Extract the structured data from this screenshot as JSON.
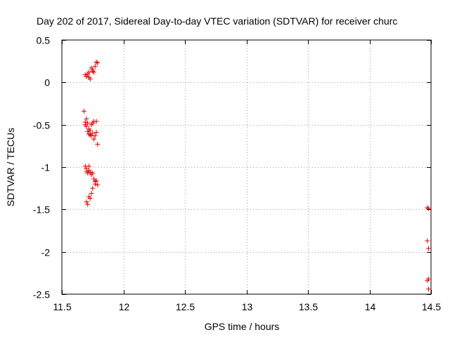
{
  "chart_data": {
    "type": "scatter",
    "title": "Day 202 of 2017, Sidereal Day-to-day VTEC variation (SDTVAR) for receiver churc",
    "xlabel": "GPS time / hours",
    "ylabel": "SDTVAR / TECUs",
    "xlim": [
      11.5,
      14.5
    ],
    "ylim": [
      -2.5,
      0.5
    ],
    "xticks": [
      11.5,
      12,
      12.5,
      13,
      13.5,
      14,
      14.5
    ],
    "xtick_labels": [
      "11.5",
      "12",
      "12.5",
      "13",
      "13.5",
      "14",
      "14.5"
    ],
    "yticks": [
      0.5,
      0,
      -0.5,
      -1,
      -1.5,
      -2,
      -2.5
    ],
    "ytick_labels": [
      "0.5",
      "0",
      "-0.5",
      "-1",
      "-1.5",
      "-2",
      "-2.5"
    ],
    "grid": true,
    "marker": "+",
    "color": "#e00000",
    "series": [
      {
        "name": "SDTVAR",
        "x": [
          11.69,
          11.7,
          11.71,
          11.72,
          11.72,
          11.73,
          11.74,
          11.75,
          11.75,
          11.76,
          11.77,
          11.78,
          11.79,
          11.68,
          11.69,
          11.69,
          11.7,
          11.7,
          11.71,
          11.71,
          11.72,
          11.72,
          11.73,
          11.73,
          11.74,
          11.74,
          11.75,
          11.75,
          11.76,
          11.76,
          11.77,
          11.78,
          11.78,
          11.79,
          11.69,
          11.7,
          11.7,
          11.71,
          11.72,
          11.72,
          11.73,
          11.74,
          11.75,
          11.76,
          11.77,
          11.77,
          11.78,
          11.79,
          11.7,
          11.71,
          11.72,
          11.73,
          11.74,
          11.75,
          14.47,
          14.48,
          14.47,
          14.48,
          14.47,
          14.48,
          14.48
        ],
        "y": [
          0.09,
          0.07,
          0.1,
          0.12,
          0.06,
          0.04,
          0.17,
          0.13,
          0.15,
          0.12,
          0.19,
          0.24,
          0.23,
          -0.34,
          -0.47,
          -0.5,
          -0.43,
          -0.52,
          -0.48,
          -0.58,
          -0.55,
          -0.61,
          -0.57,
          -0.62,
          -0.5,
          -0.63,
          -0.48,
          -0.6,
          -0.67,
          -0.46,
          -0.63,
          -0.46,
          -0.59,
          -0.73,
          -0.99,
          -1.05,
          -1.02,
          -1.07,
          -1.04,
          -0.99,
          -1.06,
          -1.09,
          -1.07,
          -1.14,
          -1.2,
          -1.17,
          -1.16,
          -1.21,
          -1.41,
          -1.44,
          -1.35,
          -1.37,
          -1.31,
          -1.25,
          -1.48,
          -1.49,
          -1.87,
          -1.96,
          -2.34,
          -2.32,
          -2.44
        ]
      }
    ]
  }
}
